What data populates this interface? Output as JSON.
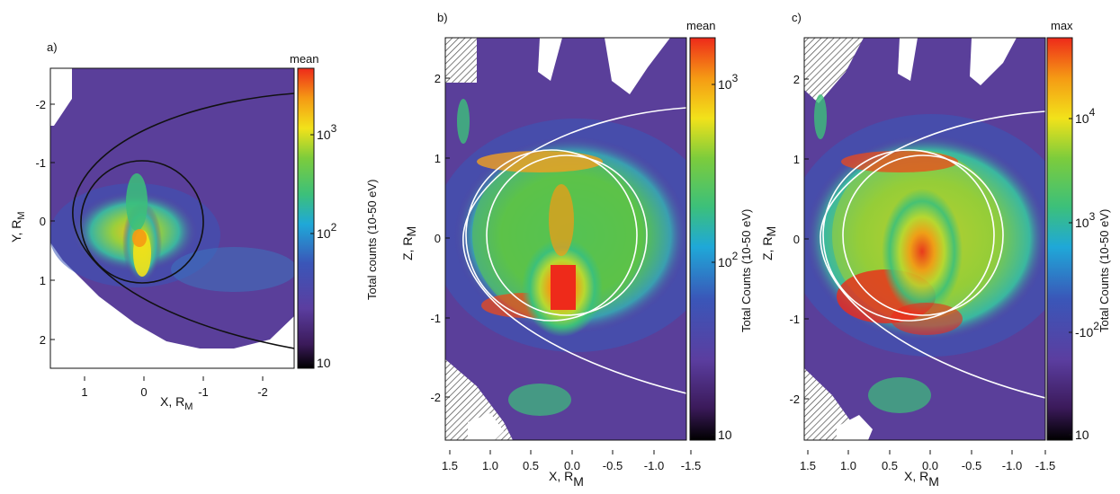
{
  "chart_data": [
    {
      "type": "heatmap",
      "panel_label": "a)",
      "colorbar_title": "mean",
      "colorbar_label": "Total counts (10-50 eV)",
      "colorbar_ticks": [
        {
          "base": "10",
          "exp": ""
        },
        {
          "base": "10",
          "exp": "2"
        },
        {
          "base": "10",
          "exp": "3"
        }
      ],
      "xlabel": {
        "main": "X, R",
        "sub": "M"
      },
      "ylabel": {
        "main": "Y, R",
        "sub": "M"
      },
      "xlim": [
        1.5,
        -2.5
      ],
      "ylim": [
        2.5,
        -2.5
      ],
      "xticks": [
        "1",
        "0",
        "-1",
        "-2"
      ],
      "yticks": [
        "-2",
        "-1",
        "0",
        "1",
        "2"
      ],
      "overlays": [
        "circle r=1 centered at origin",
        "bow shock / magnetopause curve"
      ]
    },
    {
      "type": "heatmap",
      "panel_label": "b)",
      "colorbar_title": "mean",
      "colorbar_label": "Total Counts (10-50 eV)",
      "colorbar_ticks": [
        {
          "base": "10",
          "exp": ""
        },
        {
          "base": "10",
          "exp": "2"
        },
        {
          "base": "10",
          "exp": "3"
        }
      ],
      "xlabel": {
        "main": "X, R",
        "sub": "M"
      },
      "ylabel": {
        "main": "Z, R",
        "sub": "M"
      },
      "xlim": [
        1.5,
        -1.5
      ],
      "ylim": [
        -2.5,
        2.5
      ],
      "xticks": [
        "1.5",
        "1.0",
        "0.5",
        "0.0",
        "-0.5",
        "-1.0",
        "-1.5"
      ],
      "yticks": [
        "2",
        "1",
        "0",
        "-1",
        "-2"
      ],
      "overlays": [
        "two circles r~1",
        "boundary curve"
      ]
    },
    {
      "type": "heatmap",
      "panel_label": "c)",
      "colorbar_title": "max",
      "colorbar_label": "Total Counts (10-50 eV)",
      "colorbar_ticks": [
        {
          "base": "10",
          "exp": ""
        },
        {
          "base": "-10",
          "exp": "2"
        },
        {
          "base": "10",
          "exp": "3"
        },
        {
          "base": "10",
          "exp": "4"
        }
      ],
      "xlabel": {
        "main": "X, R",
        "sub": "M"
      },
      "ylabel": {
        "main": "Z, R",
        "sub": "M"
      },
      "xlim": [
        1.5,
        -1.5
      ],
      "ylim": [
        -2.5,
        2.5
      ],
      "xticks": [
        "1.5",
        "1.0",
        "0.5",
        "0.0",
        "-0.5",
        "-1.0",
        "-1.5"
      ],
      "yticks": [
        "2",
        "1",
        "0",
        "-1",
        "-2"
      ],
      "overlays": [
        "two circles r~1",
        "boundary curve"
      ]
    }
  ],
  "colors": {
    "background_field": "#5a3f9a",
    "colormap": [
      "#000000",
      "#3b1a5a",
      "#5b3ea0",
      "#3a56b8",
      "#1fa8d8",
      "#3cc07a",
      "#7ccc3c",
      "#f2e21a",
      "#f59a14",
      "#ee2a1a"
    ]
  }
}
